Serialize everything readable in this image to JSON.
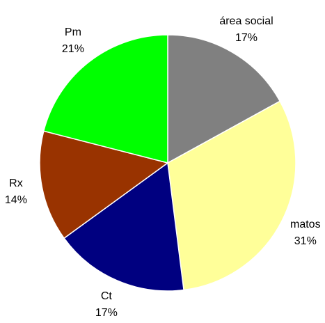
{
  "chart_data": {
    "type": "pie",
    "categories": [
      "área social",
      "matos",
      "Ct",
      "Rx",
      "Pm"
    ],
    "values": [
      17,
      31,
      17,
      14,
      21
    ],
    "value_labels": [
      "17%",
      "31%",
      "17%",
      "14%",
      "21%"
    ],
    "colors": [
      "#808080",
      "#ffff99",
      "#000080",
      "#993300",
      "#00ff00"
    ]
  }
}
